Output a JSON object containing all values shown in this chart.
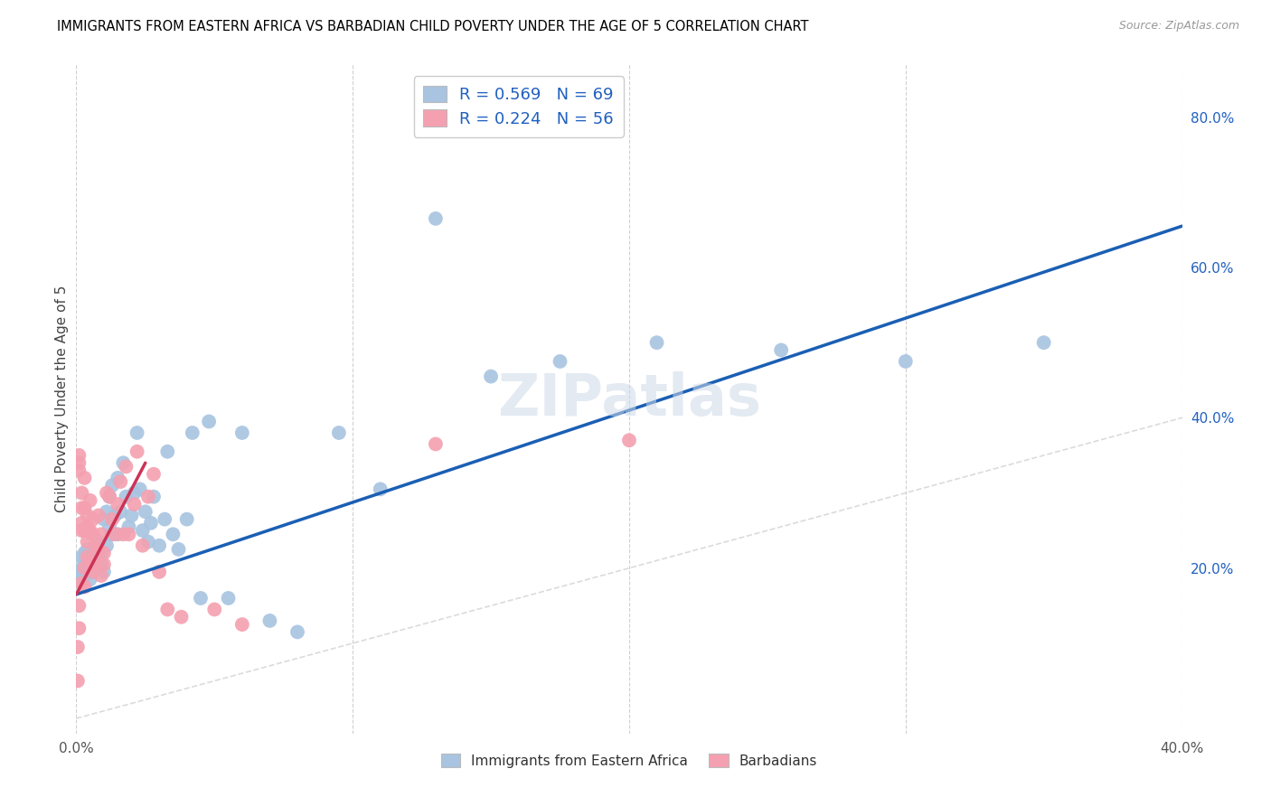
{
  "title": "IMMIGRANTS FROM EASTERN AFRICA VS BARBADIAN CHILD POVERTY UNDER THE AGE OF 5 CORRELATION CHART",
  "source": "Source: ZipAtlas.com",
  "ylabel": "Child Poverty Under the Age of 5",
  "xlim": [
    0.0,
    0.4
  ],
  "ylim": [
    -0.02,
    0.87
  ],
  "x_tick_positions": [
    0.0,
    0.1,
    0.2,
    0.3,
    0.4
  ],
  "x_tick_labels": [
    "0.0%",
    "",
    "",
    "",
    "40.0%"
  ],
  "y_ticks_right": [
    0.2,
    0.4,
    0.6,
    0.8
  ],
  "y_tick_labels_right": [
    "20.0%",
    "40.0%",
    "60.0%",
    "80.0%"
  ],
  "blue_R": 0.569,
  "blue_N": 69,
  "pink_R": 0.224,
  "pink_N": 56,
  "blue_color": "#a8c4e0",
  "pink_color": "#f4a0b0",
  "blue_line_color": "#1a5fb4",
  "pink_line_color": "#cc3355",
  "diagonal_color": "#cccccc",
  "legend_R_color": "#2060c0",
  "watermark": "ZIPatlas",
  "blue_line_x0": 0.0,
  "blue_line_y0": 0.165,
  "blue_line_x1": 0.4,
  "blue_line_y1": 0.655,
  "pink_line_x0": 0.0,
  "pink_line_x1": 0.025,
  "pink_line_y0": 0.165,
  "pink_line_y1": 0.34,
  "blue_scatter_x": [
    0.001,
    0.001,
    0.002,
    0.002,
    0.002,
    0.002,
    0.003,
    0.003,
    0.003,
    0.004,
    0.004,
    0.004,
    0.005,
    0.005,
    0.005,
    0.006,
    0.006,
    0.007,
    0.007,
    0.008,
    0.008,
    0.009,
    0.009,
    0.01,
    0.01,
    0.011,
    0.011,
    0.012,
    0.012,
    0.013,
    0.013,
    0.014,
    0.015,
    0.015,
    0.016,
    0.017,
    0.018,
    0.019,
    0.02,
    0.021,
    0.022,
    0.023,
    0.024,
    0.025,
    0.026,
    0.027,
    0.028,
    0.03,
    0.032,
    0.033,
    0.035,
    0.037,
    0.04,
    0.042,
    0.045,
    0.048,
    0.055,
    0.06,
    0.07,
    0.08,
    0.095,
    0.11,
    0.13,
    0.15,
    0.175,
    0.21,
    0.255,
    0.3,
    0.35
  ],
  "blue_scatter_y": [
    0.195,
    0.185,
    0.2,
    0.19,
    0.215,
    0.18,
    0.22,
    0.21,
    0.19,
    0.215,
    0.2,
    0.225,
    0.195,
    0.215,
    0.185,
    0.22,
    0.205,
    0.2,
    0.225,
    0.215,
    0.235,
    0.205,
    0.22,
    0.195,
    0.265,
    0.275,
    0.23,
    0.255,
    0.295,
    0.245,
    0.31,
    0.27,
    0.245,
    0.32,
    0.275,
    0.34,
    0.295,
    0.255,
    0.27,
    0.3,
    0.38,
    0.305,
    0.25,
    0.275,
    0.235,
    0.26,
    0.295,
    0.23,
    0.265,
    0.355,
    0.245,
    0.225,
    0.265,
    0.38,
    0.16,
    0.395,
    0.16,
    0.38,
    0.13,
    0.115,
    0.38,
    0.305,
    0.665,
    0.455,
    0.475,
    0.5,
    0.49,
    0.475,
    0.5
  ],
  "pink_scatter_x": [
    0.0005,
    0.0005,
    0.001,
    0.001,
    0.001,
    0.001,
    0.001,
    0.002,
    0.002,
    0.002,
    0.002,
    0.002,
    0.003,
    0.003,
    0.003,
    0.003,
    0.003,
    0.004,
    0.004,
    0.004,
    0.004,
    0.005,
    0.005,
    0.005,
    0.006,
    0.006,
    0.006,
    0.007,
    0.007,
    0.008,
    0.008,
    0.009,
    0.009,
    0.01,
    0.01,
    0.011,
    0.012,
    0.013,
    0.014,
    0.015,
    0.016,
    0.017,
    0.018,
    0.019,
    0.021,
    0.022,
    0.024,
    0.026,
    0.028,
    0.03,
    0.033,
    0.038,
    0.05,
    0.06,
    0.13,
    0.2
  ],
  "pink_scatter_y": [
    0.095,
    0.05,
    0.35,
    0.34,
    0.33,
    0.15,
    0.12,
    0.28,
    0.3,
    0.25,
    0.26,
    0.18,
    0.28,
    0.25,
    0.32,
    0.2,
    0.175,
    0.27,
    0.255,
    0.235,
    0.215,
    0.29,
    0.25,
    0.21,
    0.265,
    0.245,
    0.195,
    0.23,
    0.205,
    0.27,
    0.225,
    0.245,
    0.19,
    0.22,
    0.205,
    0.3,
    0.295,
    0.265,
    0.245,
    0.285,
    0.315,
    0.245,
    0.335,
    0.245,
    0.285,
    0.355,
    0.23,
    0.295,
    0.325,
    0.195,
    0.145,
    0.135,
    0.145,
    0.125,
    0.365,
    0.37
  ]
}
